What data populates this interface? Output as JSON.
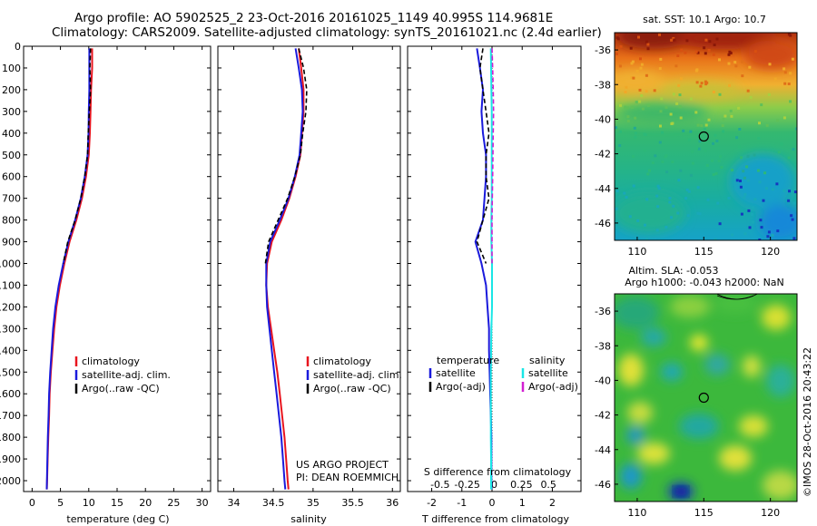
{
  "header": {
    "title_line1": "Argo profile: AO 5902525_2 23-Oct-2016 20161025_1149 40.995S 114.9681E",
    "title_line2": "Climatology: CARS2009. Satellite-adjusted climatology: synTS_20161021.nc (2.4d earlier)"
  },
  "colors": {
    "climatology": "#e8141e",
    "satellite": "#1a1adc",
    "argo": "#000000",
    "sat_salinity": "#19e6e6",
    "argo_salinity": "#d21ed2"
  },
  "chart_data": [
    {
      "type": "line",
      "name_id": "temperature-profile",
      "xlabel": "temperature (deg C)",
      "xlim": [
        -1.5,
        31.5
      ],
      "xticks": [
        0,
        5,
        10,
        15,
        20,
        25,
        30
      ],
      "ylim": [
        0,
        2050
      ],
      "yticks": [
        0,
        100,
        200,
        300,
        400,
        500,
        600,
        700,
        800,
        900,
        1000,
        1100,
        1200,
        1300,
        1400,
        1500,
        1600,
        1700,
        1800,
        1900,
        2000
      ],
      "legend": [
        "climatology",
        "satellite-adj. clim.",
        "Argo(..raw -QC)"
      ],
      "series": [
        {
          "name": "climatology",
          "style": "climatology",
          "x": [
            10.6,
            10.6,
            10.4,
            10.3,
            10.2,
            10.0,
            9.5,
            8.8,
            7.8,
            6.6,
            5.7,
            4.9,
            4.3,
            3.9,
            3.6,
            3.3,
            3.1,
            3.0,
            2.85,
            2.75,
            2.65,
            2.6
          ],
          "y": [
            10,
            100,
            200,
            300,
            400,
            500,
            600,
            700,
            800,
            900,
            1000,
            1100,
            1200,
            1300,
            1400,
            1500,
            1600,
            1700,
            1800,
            1900,
            2000,
            2040
          ]
        },
        {
          "name": "satellite-adj. clim.",
          "style": "satellite",
          "x": [
            10.1,
            10.1,
            10.1,
            10.0,
            9.95,
            9.8,
            9.3,
            8.6,
            7.6,
            6.4,
            5.5,
            4.7,
            4.1,
            3.7,
            3.45,
            3.2,
            3.0,
            2.9,
            2.78,
            2.7,
            2.62,
            2.58
          ],
          "y": [
            10,
            100,
            200,
            300,
            400,
            500,
            600,
            700,
            800,
            900,
            1000,
            1100,
            1200,
            1300,
            1400,
            1500,
            1600,
            1700,
            1800,
            1900,
            2000,
            2040
          ]
        },
        {
          "name": "Argo(..raw -QC)",
          "style": "argo",
          "x": [
            10.3,
            10.2,
            10.3,
            10.1,
            9.9,
            9.8,
            9.3,
            8.6,
            7.6,
            6.3,
            5.5
          ],
          "y": [
            10,
            100,
            200,
            300,
            400,
            500,
            600,
            700,
            800,
            900,
            1000
          ]
        }
      ]
    },
    {
      "type": "line",
      "name_id": "salinity-profile",
      "xlabel": "salinity",
      "xlim": [
        33.8,
        36.1
      ],
      "xticks": [
        34,
        34.5,
        35,
        35.5,
        36
      ],
      "ylim": [
        0,
        2050
      ],
      "legend": [
        "climatology",
        "satellite-adj. clim.",
        "Argo(..raw -QC)"
      ],
      "notes": [
        "US ARGO PROJECT",
        "PI: DEAN ROEMMICH"
      ],
      "series": [
        {
          "name": "climatology",
          "style": "climatology",
          "x": [
            34.82,
            34.85,
            34.88,
            34.88,
            34.86,
            34.84,
            34.78,
            34.7,
            34.6,
            34.48,
            34.42,
            34.41,
            34.43,
            34.47,
            34.51,
            34.55,
            34.58,
            34.61,
            34.64,
            34.66,
            34.68,
            34.69
          ],
          "y": [
            10,
            100,
            200,
            300,
            400,
            500,
            600,
            700,
            800,
            900,
            1000,
            1100,
            1200,
            1300,
            1400,
            1500,
            1600,
            1700,
            1800,
            1900,
            2000,
            2040
          ]
        },
        {
          "name": "satellite-adj. clim.",
          "style": "satellite",
          "x": [
            34.78,
            34.82,
            34.86,
            34.87,
            34.85,
            34.83,
            34.77,
            34.69,
            34.58,
            34.46,
            34.41,
            34.41,
            34.42,
            34.45,
            34.48,
            34.51,
            34.54,
            34.57,
            34.6,
            34.62,
            34.64,
            34.65
          ],
          "y": [
            10,
            100,
            200,
            300,
            400,
            500,
            600,
            700,
            800,
            900,
            1000,
            1100,
            1200,
            1300,
            1400,
            1500,
            1600,
            1700,
            1800,
            1900,
            2000,
            2040
          ]
        },
        {
          "name": "Argo(..raw -QC)",
          "style": "argo",
          "x": [
            34.82,
            34.88,
            34.92,
            34.91,
            34.87,
            34.84,
            34.77,
            34.68,
            34.56,
            34.44,
            34.4
          ],
          "y": [
            10,
            100,
            200,
            300,
            400,
            500,
            600,
            700,
            800,
            900,
            1000
          ]
        }
      ]
    },
    {
      "type": "line",
      "name_id": "difference-profile",
      "xlabel": "T difference from climatology",
      "xlabel_top": "S difference from climatology",
      "xlim": [
        -2.8,
        2.95
      ],
      "xticks": [
        -2,
        -1,
        0,
        1,
        2
      ],
      "sticks": [
        -0.5,
        -0.25,
        0,
        0.25,
        0.5
      ],
      "ylim": [
        0,
        2050
      ],
      "legend_temperature_title": "temperature",
      "legend_salinity_title": "salinity",
      "legend": [
        "satellite",
        "Argo(-adj)",
        "satellite",
        "Argo(-adj)"
      ],
      "series": [
        {
          "name": "temperature satellite",
          "style": "satellite",
          "x": [
            -0.5,
            -0.4,
            -0.3,
            -0.35,
            -0.3,
            -0.2,
            -0.2,
            -0.25,
            -0.3,
            -0.55,
            -0.35,
            -0.2,
            -0.15,
            -0.1,
            -0.1,
            -0.08,
            -0.06,
            -0.04,
            -0.02,
            -0.02,
            -0.02,
            -0.02
          ],
          "y": [
            10,
            100,
            200,
            300,
            400,
            500,
            600,
            700,
            800,
            900,
            1000,
            1100,
            1200,
            1300,
            1400,
            1500,
            1600,
            1700,
            1800,
            1900,
            2000,
            2040
          ]
        },
        {
          "name": "temperature Argo(-adj)",
          "style": "argo",
          "x": [
            -0.3,
            -0.4,
            -0.3,
            -0.2,
            -0.1,
            -0.2,
            -0.2,
            -0.1,
            -0.3,
            -0.5,
            -0.2
          ],
          "y": [
            10,
            100,
            200,
            300,
            400,
            500,
            600,
            700,
            800,
            900,
            1000
          ]
        },
        {
          "name": "salinity satellite",
          "style": "sat_salinity",
          "x": [
            -0.04,
            -0.03,
            -0.02,
            -0.01,
            -0.01,
            -0.01,
            -0.01,
            -0.01,
            -0.02,
            -0.02,
            0.0,
            0.0,
            0.0,
            -0.02,
            -0.03,
            -0.04,
            -0.04,
            -0.04,
            -0.04,
            -0.03,
            -0.03,
            -0.03
          ],
          "y": [
            10,
            100,
            200,
            300,
            400,
            500,
            600,
            700,
            800,
            900,
            1000,
            1100,
            1200,
            1300,
            1400,
            1500,
            1600,
            1700,
            1800,
            1900,
            2000,
            2040
          ]
        },
        {
          "name": "salinity Argo(-adj)",
          "style": "argo_salinity",
          "x": [
            0.0,
            0.02,
            0.04,
            0.05,
            0.04,
            0.03,
            0.02,
            0.01,
            0.0,
            0.0,
            0.0
          ],
          "y": [
            10,
            100,
            200,
            300,
            400,
            500,
            600,
            700,
            800,
            900,
            1000
          ]
        }
      ]
    },
    {
      "type": "heatmap",
      "name_id": "sst-map",
      "title": "sat. SST: 10.1 Argo: 10.7",
      "xticks": [
        110,
        115,
        120
      ],
      "yticks": [
        -36,
        -38,
        -40,
        -42,
        -44,
        -46
      ],
      "xlim": [
        108.3,
        122
      ],
      "ylim": [
        -47,
        -35
      ],
      "marker": [
        115,
        -41
      ]
    },
    {
      "type": "heatmap",
      "name_id": "sla-map",
      "title": "Altim. SLA: -0.053",
      "subtitle": "Argo h1000: -0.043 h2000: NaN",
      "xticks": [
        110,
        115,
        120
      ],
      "yticks": [
        -36,
        -38,
        -40,
        -42,
        -44,
        -46
      ],
      "xlim": [
        108.3,
        122
      ],
      "ylim": [
        -47,
        -35
      ],
      "marker": [
        115,
        -41
      ]
    }
  ],
  "credit": "©IMOS 28-Oct-2016 20:43:22"
}
